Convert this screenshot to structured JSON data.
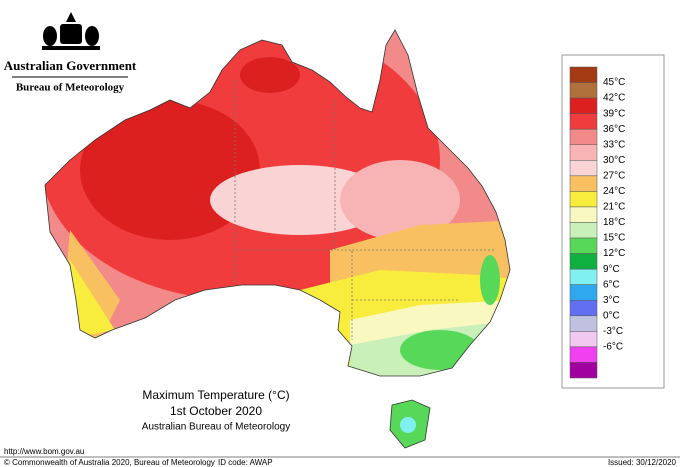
{
  "header": {
    "title": "Australian Government",
    "subtitle": "Bureau of Meteorology"
  },
  "map": {
    "title": "Maximum Temperature (°C)",
    "date": "1st October 2020",
    "source": "Australian Bureau of Meteorology"
  },
  "legend": {
    "labels": [
      "45°C",
      "42°C",
      "39°C",
      "36°C",
      "33°C",
      "30°C",
      "27°C",
      "24°C",
      "21°C",
      "18°C",
      "15°C",
      "12°C",
      "9°C",
      "6°C",
      "3°C",
      "0°C",
      "-3°C",
      "-6°C"
    ],
    "colors": [
      "#a33a14",
      "#b0703c",
      "#dc2020",
      "#f03c3c",
      "#f28a8a",
      "#f8b4b4",
      "#fad4d4",
      "#f8c060",
      "#f8ec3c",
      "#f8f8c0",
      "#c8f0b8",
      "#58d858",
      "#10b040",
      "#80f0f0",
      "#30a8f0",
      "#6070f0",
      "#c0c0e0",
      "#f0c8f0",
      "#f040f0",
      "#a000a0"
    ]
  },
  "footer": {
    "url": "http://www.bom.gov.au",
    "copyright": "© Commonwealth of Australia 2020, Bureau of Meteorology",
    "id_code": "ID code: AWAP",
    "issued": "Issued: 30/12/2020"
  }
}
